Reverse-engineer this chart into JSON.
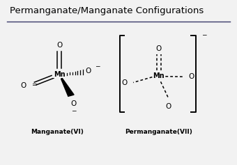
{
  "title": "Permanganate/Manganate Configurations",
  "title_fontsize": 9.5,
  "bg_color": "#f2f2f2",
  "line_color": "#3a3a6a",
  "atom_color": "black",
  "label1": "Manganate(VI)",
  "label2": "Permanganate(VII)",
  "mn1": [
    0.25,
    0.55
  ],
  "mn2": [
    0.67,
    0.54
  ],
  "charge_minus": "−"
}
